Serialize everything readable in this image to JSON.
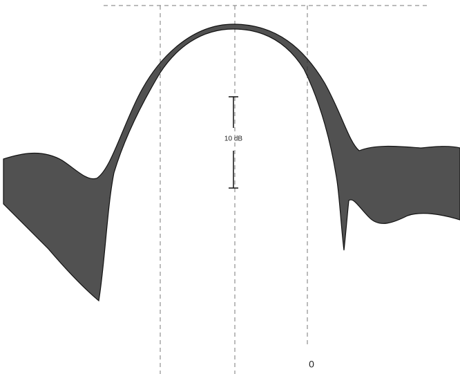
{
  "figure": {
    "scale_label": "10 dB",
    "zero_label": "0"
  }
}
